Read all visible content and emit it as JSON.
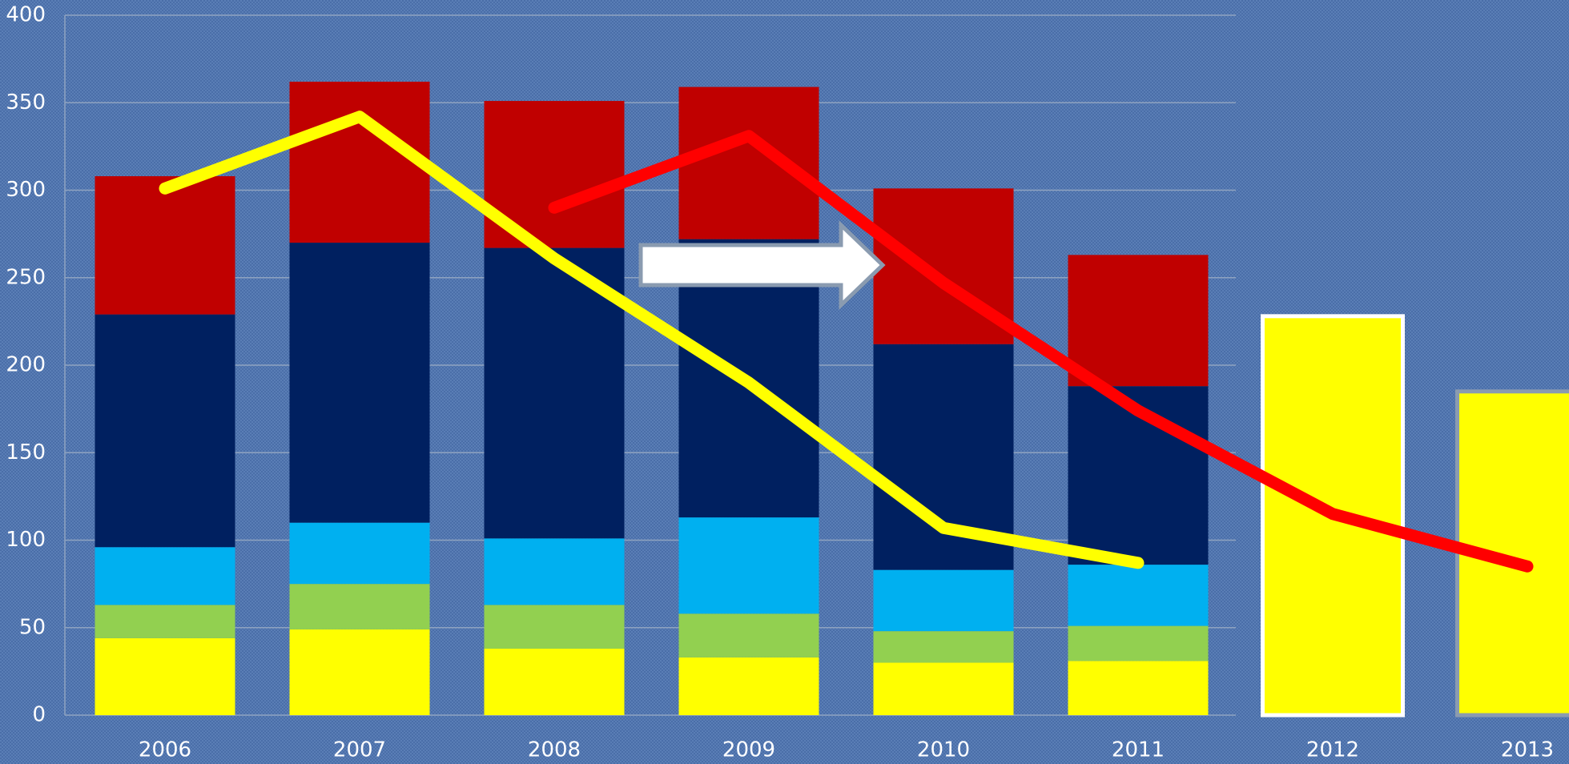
{
  "chart_data": {
    "type": "bar",
    "stacked": true,
    "categories": [
      "2006",
      "2007",
      "2008",
      "2009",
      "2010",
      "2011",
      "2012",
      "2013"
    ],
    "series": [
      {
        "color": "#ffff00",
        "values": [
          44,
          49,
          38,
          33,
          30,
          31,
          228,
          185
        ],
        "edgecolors": [
          null,
          null,
          null,
          null,
          null,
          null,
          "#ffffff",
          "#8a9bb0"
        ]
      },
      {
        "color": "#92d050",
        "values": [
          19,
          26,
          25,
          25,
          18,
          20,
          null,
          null
        ]
      },
      {
        "color": "#00b0f0",
        "values": [
          33,
          35,
          38,
          55,
          35,
          35,
          null,
          null
        ]
      },
      {
        "color": "#002060",
        "values": [
          133,
          160,
          166,
          159,
          129,
          102,
          null,
          null
        ]
      },
      {
        "color": "#c00000",
        "values": [
          79,
          92,
          84,
          87,
          89,
          75,
          null,
          null
        ]
      },
      {
        "type": "line",
        "color": "#ffff00",
        "values": [
          301,
          342,
          261,
          190,
          107,
          87,
          null,
          null
        ]
      },
      {
        "type": "line",
        "color": "#ff0000",
        "values": [
          null,
          null,
          290,
          331,
          247,
          174,
          115,
          85
        ]
      }
    ],
    "ylim": [
      0,
      400
    ],
    "yticks": [
      0,
      50,
      100,
      150,
      200,
      250,
      300,
      350,
      400
    ],
    "grid": true
  }
}
